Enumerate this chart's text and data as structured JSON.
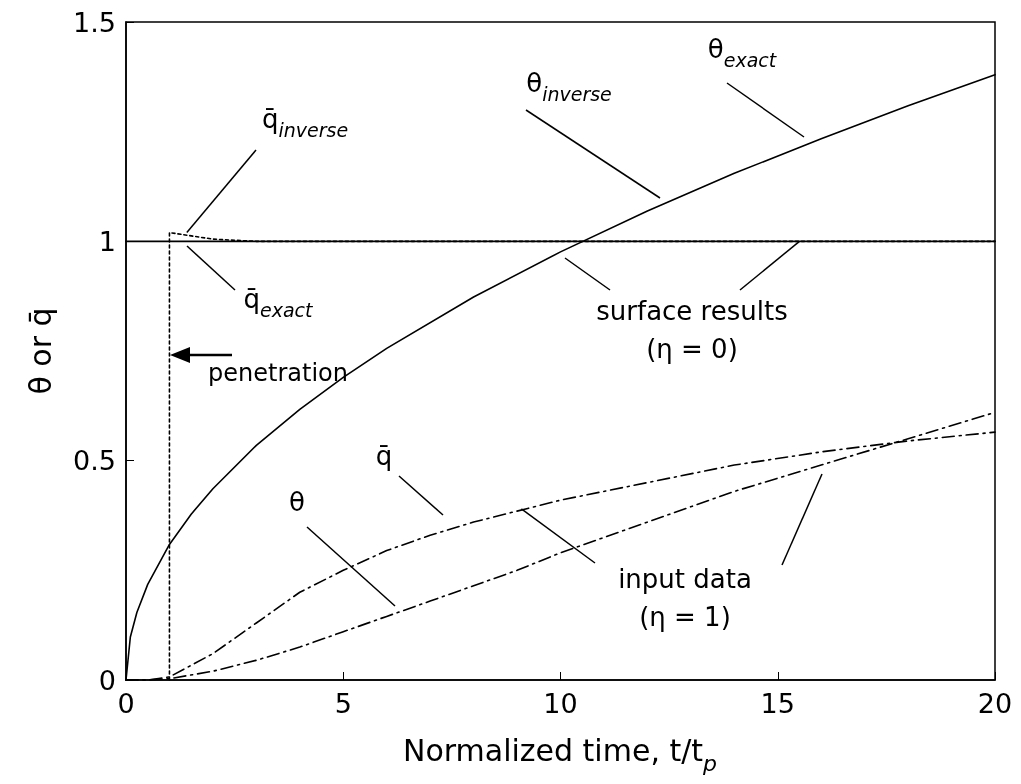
{
  "chart_data": {
    "type": "line",
    "xlabel": "Normalized time,  t/t$_{p}$",
    "ylabel": "θ or q̄",
    "xlim": [
      0,
      20
    ],
    "xticks": [
      0,
      5,
      10,
      15,
      20
    ],
    "ylim": [
      0,
      1.5
    ],
    "yticks": [
      0,
      0.5,
      1,
      1.5
    ],
    "grid": false,
    "marker": "none",
    "series": [
      {
        "color": "#000000",
        "line_style": "solid",
        "x": [
          0,
          0.1,
          0.25,
          0.5,
          1,
          1.5,
          2,
          3,
          4,
          5,
          6,
          8,
          10,
          12,
          14,
          16,
          18,
          20
        ],
        "values": [
          0,
          0.098,
          0.154,
          0.218,
          0.309,
          0.378,
          0.436,
          0.535,
          0.617,
          0.69,
          0.756,
          0.873,
          0.976,
          1.069,
          1.155,
          1.234,
          1.309,
          1.38
        ]
      },
      {
        "color": "#000000",
        "line_style": "solid",
        "x": [
          0,
          20
        ],
        "values": [
          1,
          1
        ]
      },
      {
        "color": "#000000",
        "line_style": "dotted",
        "x": [
          1,
          1,
          2,
          3,
          20
        ],
        "values": [
          0,
          1.02,
          1.005,
          1,
          1
        ]
      },
      {
        "color": "#000000",
        "line_style": "dashed",
        "x": [
          0,
          0.5,
          1,
          2,
          3,
          4,
          5,
          6,
          7,
          8,
          9,
          10,
          12,
          14,
          16,
          18,
          20
        ],
        "values": [
          0,
          0,
          0.007,
          0.06,
          0.13,
          0.2,
          0.25,
          0.295,
          0.33,
          0.36,
          0.385,
          0.41,
          0.45,
          0.49,
          0.52,
          0.545,
          0.565
        ]
      },
      {
        "color": "#000000",
        "line_style": "dashed",
        "x": [
          0,
          0.5,
          1,
          2,
          3,
          4,
          5,
          6,
          7,
          8,
          9,
          10,
          12,
          14,
          16,
          18,
          20
        ],
        "values": [
          0,
          0,
          0.003,
          0.02,
          0.045,
          0.075,
          0.11,
          0.145,
          0.18,
          0.215,
          0.25,
          0.29,
          0.36,
          0.43,
          0.49,
          0.55,
          0.61
        ]
      }
    ],
    "annotations": [
      {
        "text": "q̄$_{inverse}$",
        "x": 1.4,
        "y": 1.02
      },
      "q̄$_{exact}$",
      "θ$_{inverse}$",
      "θ$_{exact}$",
      {
        "text": "surface results\n(η = 0)",
        "x": 15.5,
        "y": 1
      },
      "penetration",
      "q̄",
      "θ",
      {
        "text": "input data\n(η = 1)",
        "x": 9.1,
        "y": 0.39
      }
    ]
  }
}
